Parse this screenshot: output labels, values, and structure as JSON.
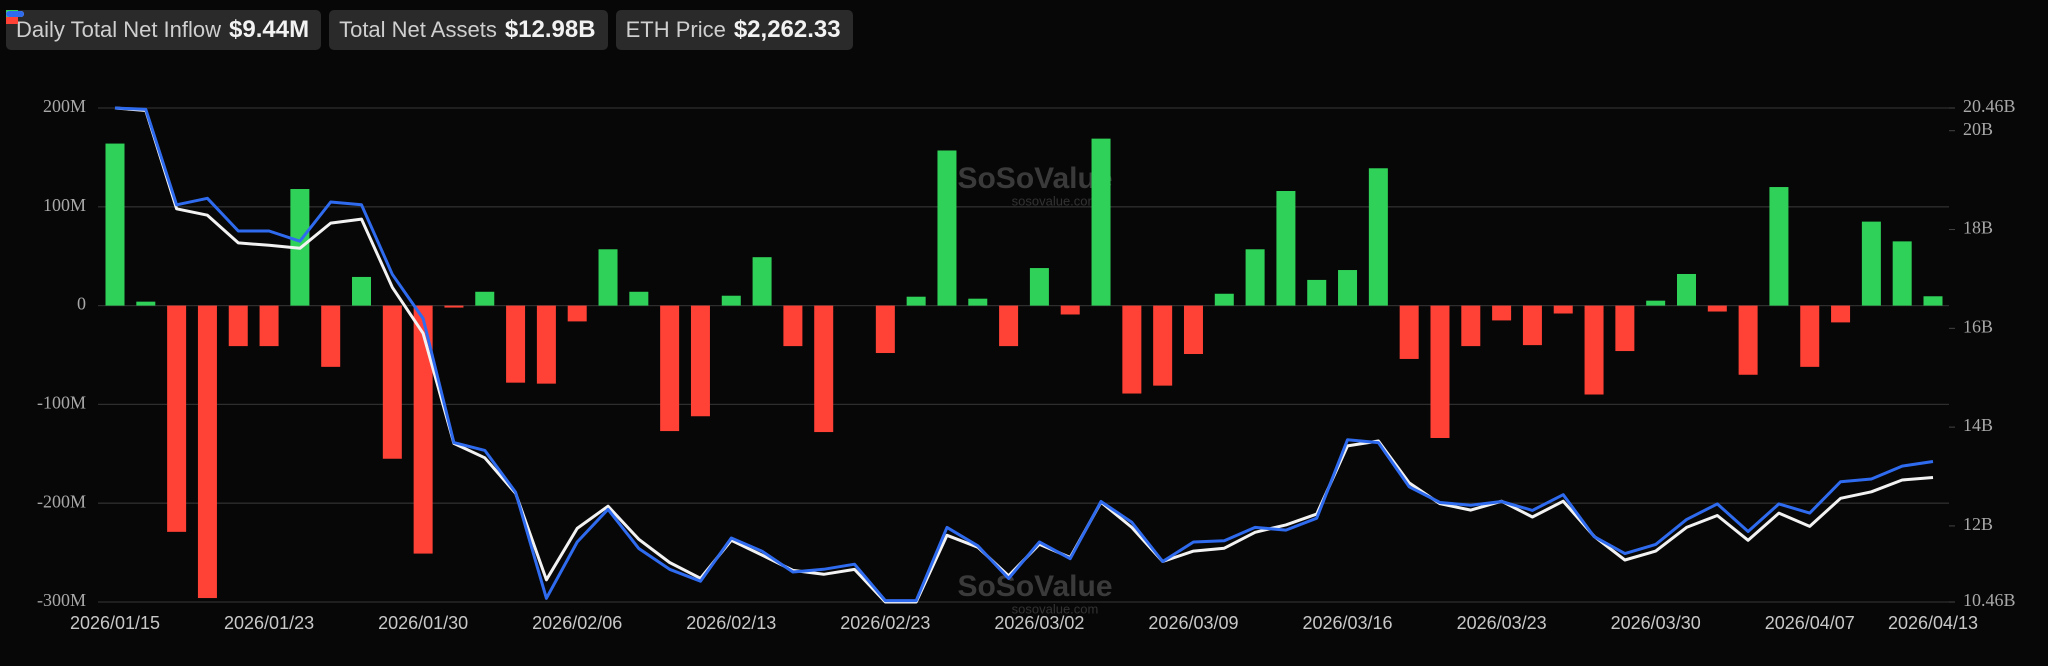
{
  "chart_data": {
    "type": "bar-line",
    "categories": [
      "2026/01/15",
      null,
      null,
      null,
      null,
      "2026/01/23",
      null,
      null,
      null,
      null,
      "2026/01/30",
      null,
      null,
      null,
      null,
      "2026/02/06",
      null,
      null,
      null,
      null,
      "2026/02/13",
      null,
      null,
      null,
      null,
      "2026/02/23",
      null,
      null,
      null,
      null,
      "2026/03/02",
      null,
      null,
      null,
      null,
      "2026/03/09",
      null,
      null,
      null,
      null,
      "2026/03/16",
      null,
      null,
      null,
      null,
      "2026/03/23",
      null,
      null,
      null,
      null,
      "2026/03/30",
      null,
      null,
      null,
      null,
      "2026/04/07",
      null,
      null,
      null,
      "2026/04/13"
    ],
    "series": [
      {
        "name": "Daily Total Net Inflow",
        "latest_label": "$9.44M",
        "type": "bar",
        "positive_color": "#30d158",
        "negative_color": "#ff4136",
        "values": [
          164,
          4,
          -229,
          -296,
          -41,
          -41,
          118,
          -62,
          29,
          -155,
          -251,
          -2,
          14,
          -78,
          -79,
          -16,
          57,
          14,
          -127,
          -112,
          10,
          49,
          -41,
          -128,
          0,
          -48,
          9,
          157,
          7,
          -41,
          38,
          -9,
          169,
          -89,
          -81,
          -49,
          12,
          57,
          116,
          26,
          36,
          139,
          -54,
          -134,
          -41,
          -15,
          -40,
          -8,
          -90,
          -46,
          5,
          32,
          -6,
          -70,
          120,
          -62,
          -17,
          85,
          65,
          9.44
        ]
      },
      {
        "name": "Total Net Assets",
        "latest_label": "$12.98B",
        "type": "line",
        "axis": "y2",
        "color": "#f2f2f2",
        "values": [
          20.46,
          20.41,
          18.42,
          18.29,
          17.73,
          17.68,
          17.62,
          18.13,
          18.21,
          16.83,
          15.9,
          13.67,
          13.38,
          12.66,
          10.91,
          11.95,
          12.4,
          11.73,
          11.26,
          10.94,
          11.71,
          11.41,
          11.1,
          11.02,
          11.12,
          10.46,
          10.46,
          11.81,
          11.57,
          10.99,
          11.63,
          11.36,
          12.48,
          11.97,
          11.28,
          11.49,
          11.55,
          11.87,
          12.02,
          12.24,
          13.62,
          13.72,
          12.87,
          12.45,
          12.32,
          12.5,
          12.18,
          12.5,
          11.79,
          11.31,
          11.49,
          11.97,
          12.21,
          11.71,
          12.26,
          11.99,
          12.56,
          12.69,
          12.93,
          12.98
        ]
      },
      {
        "name": "ETH Price",
        "latest_label": "$2,262.33",
        "type": "line",
        "axis": "y3",
        "color": "#2f6bef",
        "values": [
          3300,
          3296,
          3016,
          3035,
          2939,
          2939,
          2909,
          3024,
          3016,
          2812,
          2682,
          2318,
          2295,
          2172,
          1861,
          2026,
          2122,
          2007,
          1946,
          1911,
          2038,
          1999,
          1938,
          1946,
          1961,
          1854,
          1854,
          2069,
          2015,
          1919,
          2026,
          1977,
          2145,
          2084,
          1969,
          2026,
          2030,
          2069,
          2061,
          2096,
          2326,
          2318,
          2188,
          2142,
          2134,
          2145,
          2119,
          2165,
          2042,
          1992,
          2019,
          2092,
          2138,
          2057,
          2138,
          2111,
          2203,
          2211,
          2249,
          2262.33
        ]
      }
    ],
    "ylim": [
      -300,
      200
    ],
    "yticks": [
      {
        "value": -300,
        "label": "-300M"
      },
      {
        "value": -200,
        "label": "-200M"
      },
      {
        "value": -100,
        "label": "-100M"
      },
      0,
      {
        "value": 100,
        "label": "100M"
      },
      {
        "value": 200,
        "label": "200M"
      }
    ],
    "y2lim": [
      10.46,
      20.46
    ],
    "y2ticks": [
      {
        "value": 10.46,
        "label": "10.46B"
      },
      {
        "value": 12,
        "label": "12B"
      },
      {
        "value": 14,
        "label": "14B"
      },
      {
        "value": 16,
        "label": "16B"
      },
      {
        "value": 18,
        "label": "18B"
      },
      {
        "value": 20,
        "label": "20B"
      },
      {
        "value": 20.46,
        "label": "20.46B"
      }
    ],
    "y3lim": [
      1850,
      3300
    ],
    "grid": true,
    "watermark": "SoSoValue",
    "watermark_sub": "sosovalue.com"
  }
}
